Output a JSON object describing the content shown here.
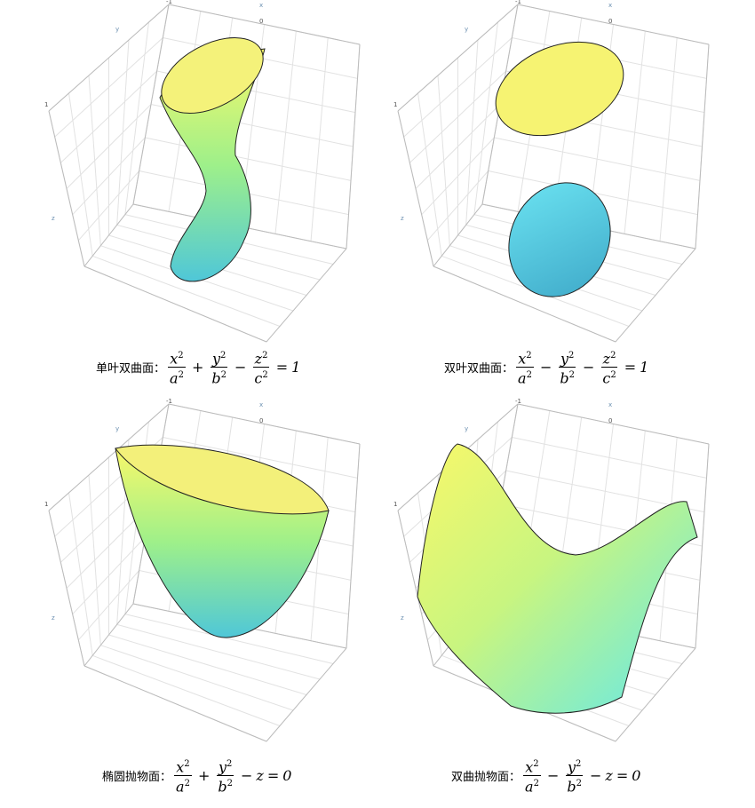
{
  "panels": [
    {
      "name": "单叶双曲面：",
      "axis_labels": {
        "x": "x",
        "y": "y",
        "z": "z"
      },
      "ticks": [
        "-1",
        "0",
        "1"
      ],
      "formula": [
        {
          "num": "x",
          "num_sup": "2",
          "den": "a",
          "den_sup": "2"
        },
        {
          "op": "+"
        },
        {
          "num": "y",
          "num_sup": "2",
          "den": "b",
          "den_sup": "2"
        },
        {
          "op": "−"
        },
        {
          "num": "z",
          "num_sup": "2",
          "den": "c",
          "den_sup": "2"
        },
        {
          "op": "="
        },
        {
          "var": "1"
        }
      ]
    },
    {
      "name": "双叶双曲面：",
      "axis_labels": {
        "x": "x",
        "y": "y",
        "z": "z"
      },
      "ticks": [
        "-1",
        "0",
        "1"
      ],
      "formula": [
        {
          "num": "x",
          "num_sup": "2",
          "den": "a",
          "den_sup": "2"
        },
        {
          "op": "−"
        },
        {
          "num": "y",
          "num_sup": "2",
          "den": "b",
          "den_sup": "2"
        },
        {
          "op": "−"
        },
        {
          "num": "z",
          "num_sup": "2",
          "den": "c",
          "den_sup": "2"
        },
        {
          "op": "="
        },
        {
          "var": "1"
        }
      ]
    },
    {
      "name": "椭圆抛物面：",
      "axis_labels": {
        "x": "x",
        "y": "y",
        "z": "z"
      },
      "ticks": [
        "-1",
        "0",
        "1"
      ],
      "formula": [
        {
          "num": "x",
          "num_sup": "2",
          "den": "a",
          "den_sup": "2"
        },
        {
          "op": "+"
        },
        {
          "num": "y",
          "num_sup": "2",
          "den": "b",
          "den_sup": "2"
        },
        {
          "op": "−"
        },
        {
          "var": "z"
        },
        {
          "op": "="
        },
        {
          "var": "0"
        }
      ]
    },
    {
      "name": "双曲抛物面：",
      "axis_labels": {
        "x": "x",
        "y": "y",
        "z": "z"
      },
      "ticks": [
        "-1",
        "0",
        "1"
      ],
      "formula": [
        {
          "num": "x",
          "num_sup": "2",
          "den": "a",
          "den_sup": "2"
        },
        {
          "op": "−"
        },
        {
          "num": "y",
          "num_sup": "2",
          "den": "b",
          "den_sup": "2"
        },
        {
          "op": "−"
        },
        {
          "var": "z"
        },
        {
          "op": "="
        },
        {
          "var": "0"
        }
      ]
    }
  ]
}
